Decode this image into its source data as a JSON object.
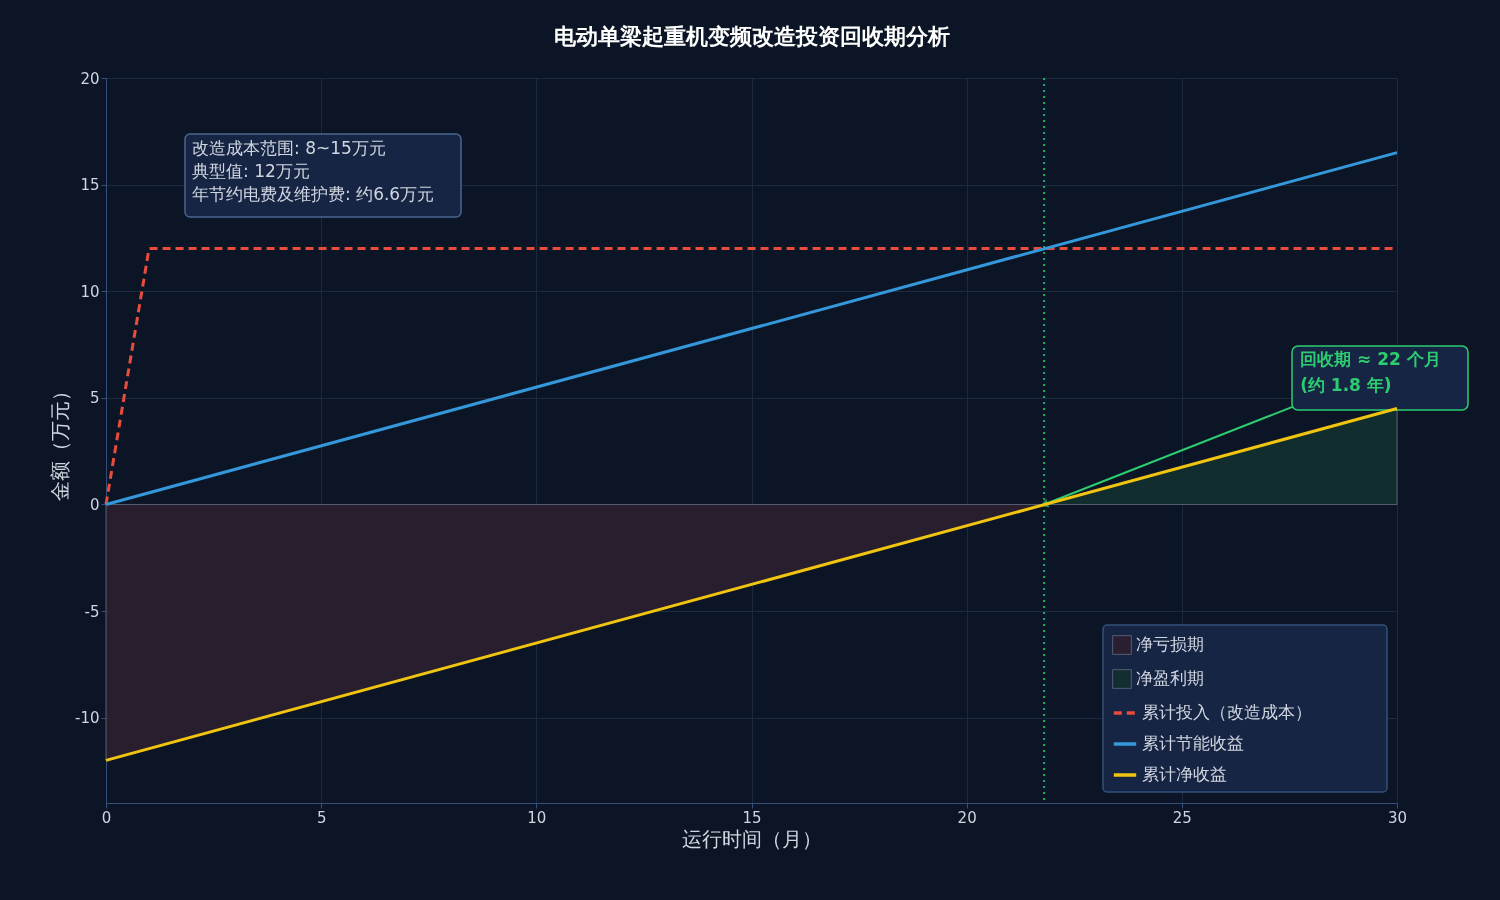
{
  "chart_data": {
    "type": "line",
    "title": "电动单梁起重机变频改造投资回收期分析",
    "xlabel": "运行时间（月）",
    "ylabel": "金额（万元）",
    "xlim": [
      0,
      30
    ],
    "xticks": [
      0,
      5,
      10,
      15,
      20,
      25,
      30
    ],
    "ylim": [
      -14,
      20
    ],
    "yticks": [
      -10,
      -5,
      0,
      5,
      10,
      15,
      20
    ],
    "grid": true,
    "legend": "bottom right",
    "series": [
      {
        "name": "净亏损期",
        "type": "area",
        "color": "#2c1f2e",
        "x": [
          0,
          21.8
        ],
        "values": [
          -12,
          0
        ]
      },
      {
        "name": "净盈利期",
        "type": "area",
        "color": "#12302f",
        "x": [
          21.8,
          30
        ],
        "values": [
          0,
          4.5
        ]
      },
      {
        "name": "累计投入（改造成本）",
        "color": "#e74c3c",
        "line_style": "dashed",
        "x": [
          0,
          1,
          30
        ],
        "values": [
          0,
          12,
          12
        ]
      },
      {
        "name": "累计节能收益",
        "color": "#3498db",
        "line_style": "solid",
        "x": [
          0,
          30
        ],
        "values": [
          0,
          16.5
        ]
      },
      {
        "name": "累计净收益",
        "color": "#f1c40f",
        "line_style": "solid",
        "x": [
          0,
          30
        ],
        "values": [
          -12,
          4.5
        ]
      }
    ],
    "ref_lines": [
      {
        "axis": "x",
        "value": 21.8,
        "color": "#27ae60",
        "line_style": "dotted"
      }
    ],
    "annotations": [
      "改造成本范围: 8~15万元",
      "典型值: 12万元",
      "年节约电费及维护费: 约6.6万元",
      {
        "text": "回收期 ≈ 22 个月\n  (约 1.8 年)",
        "x": 21.8,
        "y": 0
      }
    ]
  }
}
